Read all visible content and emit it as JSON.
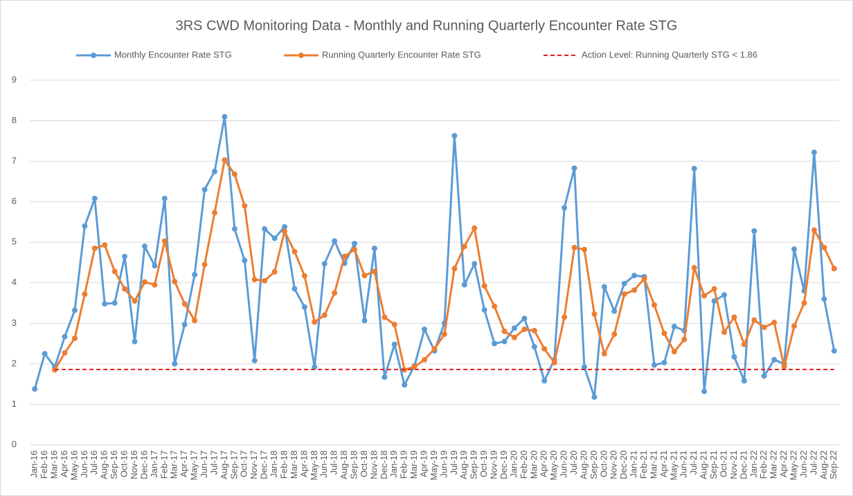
{
  "chart_data": {
    "type": "line",
    "title": "3RS CWD Monitoring Data - Monthly and Running Quarterly Encounter Rate STG",
    "categories": [
      "Jan-16",
      "Feb-16",
      "Mar-16",
      "Apr-16",
      "May-16",
      "Jun-16",
      "Jul-16",
      "Aug-16",
      "Sep-16",
      "Oct-16",
      "Nov-16",
      "Dec-16",
      "Jan-17",
      "Feb-17",
      "Mar-17",
      "Apr-17",
      "May-17",
      "Jun-17",
      "Jul-17",
      "Aug-17",
      "Sep-17",
      "Oct-17",
      "Nov-17",
      "Dec-17",
      "Jan-18",
      "Feb-18",
      "Mar-18",
      "Apr-18",
      "May-18",
      "Jun-18",
      "Jul-18",
      "Aug-18",
      "Sep-18",
      "Oct-18",
      "Nov-18",
      "Dec-18",
      "Jan-19",
      "Feb-19",
      "Mar-19",
      "Apr-19",
      "May-19",
      "Jun-19",
      "Jul-19",
      "Aug-19",
      "Sep-19",
      "Oct-19",
      "Nov-19",
      "Dec-19",
      "Jan-20",
      "Feb-20",
      "Mar-20",
      "Apr-20",
      "May-20",
      "Jun-20",
      "Jul-20",
      "Aug-20",
      "Sep-20",
      "Oct-20",
      "Nov-20",
      "Dec-20",
      "Jan-21",
      "Feb-21",
      "Mar-21",
      "Apr-21",
      "May-21",
      "Jun-21",
      "Jul-21",
      "Aug-21",
      "Sep-21",
      "Oct-21",
      "Nov-21",
      "Dec-21",
      "Jan-22",
      "Feb-22",
      "Mar-22",
      "Apr-22",
      "May-22",
      "Jun-22",
      "Jul-22",
      "Aug-22",
      "Sep-22"
    ],
    "series": [
      {
        "name": "Monthly Encounter Rate STG",
        "color": "#5b9bd5",
        "markers": true,
        "dashed": false,
        "values": [
          1.38,
          2.25,
          1.92,
          2.67,
          3.32,
          5.4,
          6.08,
          3.48,
          3.5,
          4.65,
          2.55,
          4.9,
          4.42,
          6.08,
          2.0,
          2.97,
          4.2,
          6.3,
          6.75,
          8.1,
          5.33,
          4.55,
          2.08,
          5.33,
          5.1,
          5.38,
          3.85,
          3.4,
          1.92,
          4.47,
          5.03,
          4.48,
          4.97,
          3.07,
          4.85,
          1.67,
          2.48,
          1.48,
          1.95,
          2.85,
          2.32,
          3.0,
          7.63,
          3.95,
          4.47,
          3.33,
          2.5,
          2.55,
          2.88,
          3.12,
          2.42,
          1.58,
          2.1,
          5.85,
          6.83,
          1.92,
          1.18,
          3.9,
          3.3,
          3.98,
          4.18,
          4.15,
          1.97,
          2.03,
          2.92,
          2.82,
          6.82,
          1.32,
          3.55,
          3.7,
          2.17,
          1.58,
          5.28,
          1.7,
          2.1,
          2.0,
          4.83,
          3.8,
          7.22,
          3.6,
          2.32
        ]
      },
      {
        "name": "Running Quarterly Encounter Rate STG",
        "color": "#ed7d31",
        "markers": true,
        "dashed": false,
        "values": [
          null,
          null,
          1.85,
          2.27,
          2.63,
          3.72,
          4.85,
          4.93,
          4.28,
          3.85,
          3.55,
          4.02,
          3.95,
          5.03,
          4.03,
          3.48,
          3.07,
          4.45,
          5.73,
          7.03,
          6.68,
          5.9,
          4.08,
          4.05,
          4.27,
          5.27,
          4.77,
          4.17,
          3.03,
          3.2,
          3.75,
          4.65,
          4.82,
          4.18,
          4.28,
          3.15,
          2.97,
          1.85,
          1.93,
          2.1,
          2.37,
          2.73,
          4.35,
          4.9,
          5.35,
          3.92,
          3.42,
          2.8,
          2.65,
          2.85,
          2.82,
          2.37,
          2.03,
          3.15,
          4.87,
          4.82,
          3.23,
          2.25,
          2.73,
          3.72,
          3.82,
          4.1,
          3.45,
          2.75,
          2.3,
          2.6,
          4.37,
          3.68,
          3.85,
          2.78,
          3.15,
          2.48,
          3.08,
          2.9,
          3.02,
          1.93,
          2.93,
          3.5,
          5.3,
          4.87,
          4.35
        ]
      },
      {
        "name": "Action Level: Running Quarterly STG < 1.86",
        "color": "#e31a1c",
        "markers": false,
        "dashed": true,
        "values": [
          null,
          null,
          1.86,
          1.86,
          1.86,
          1.86,
          1.86,
          1.86,
          1.86,
          1.86,
          1.86,
          1.86,
          1.86,
          1.86,
          1.86,
          1.86,
          1.86,
          1.86,
          1.86,
          1.86,
          1.86,
          1.86,
          1.86,
          1.86,
          1.86,
          1.86,
          1.86,
          1.86,
          1.86,
          1.86,
          1.86,
          1.86,
          1.86,
          1.86,
          1.86,
          1.86,
          1.86,
          1.86,
          1.86,
          1.86,
          1.86,
          1.86,
          1.86,
          1.86,
          1.86,
          1.86,
          1.86,
          1.86,
          1.86,
          1.86,
          1.86,
          1.86,
          1.86,
          1.86,
          1.86,
          1.86,
          1.86,
          1.86,
          1.86,
          1.86,
          1.86,
          1.86,
          1.86,
          1.86,
          1.86,
          1.86,
          1.86,
          1.86,
          1.86,
          1.86,
          1.86,
          1.86,
          1.86,
          1.86,
          1.86,
          1.86,
          1.86,
          1.86,
          1.86,
          1.86,
          1.86
        ]
      }
    ],
    "ylim": [
      0,
      9
    ],
    "yticks": [
      0,
      1,
      2,
      3,
      4,
      5,
      6,
      7,
      8,
      9
    ],
    "grid": true,
    "legend": "top"
  }
}
